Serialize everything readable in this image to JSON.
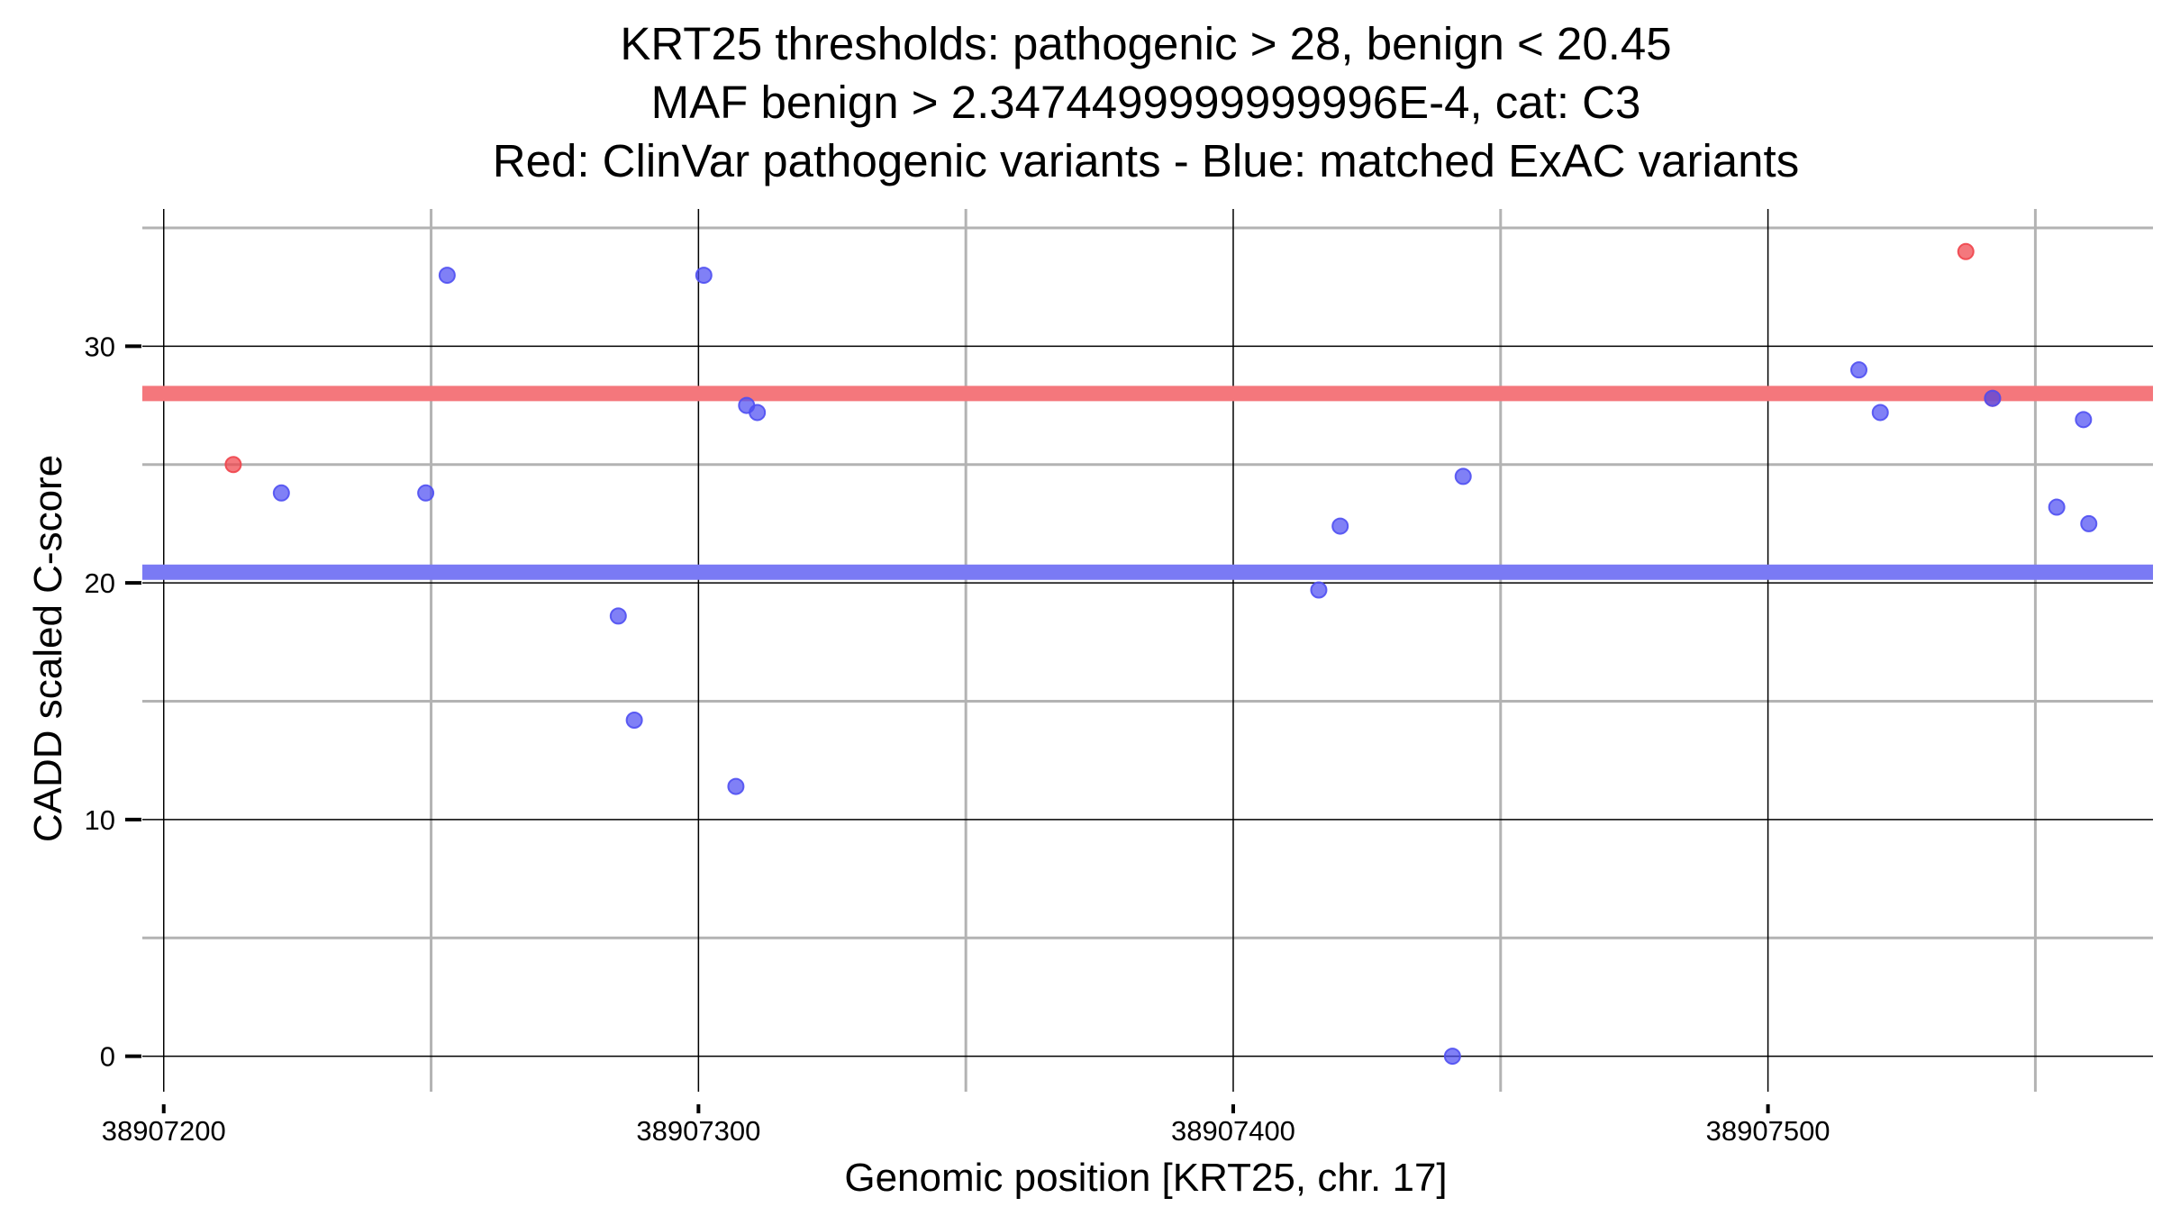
{
  "chart_data": {
    "type": "scatter",
    "title_lines": [
      "KRT25 thresholds: pathogenic > 28, benign < 20.45",
      "MAF benign > 2.3474499999999996E-4, cat: C3",
      "Red: ClinVar pathogenic variants - Blue: matched ExAC variants"
    ],
    "xlabel": "Genomic position [KRT25, chr. 17]",
    "ylabel": "CADD scaled C-score",
    "xlim": [
      38907196,
      38907572
    ],
    "ylim": [
      -1.5,
      35.8
    ],
    "x_ticks": [
      38907200,
      38907300,
      38907400,
      38907500
    ],
    "x_tick_labels": [
      "38907200",
      "38907300",
      "38907400",
      "38907500"
    ],
    "x_minor_grid": [
      38907250,
      38907350,
      38907450,
      38907550
    ],
    "y_ticks": [
      0,
      10,
      20,
      30
    ],
    "y_tick_labels": [
      "0",
      "10",
      "20",
      "30"
    ],
    "y_minor_grid": [
      5,
      15,
      25,
      35
    ],
    "thresholds": [
      {
        "name": "pathogenic",
        "value": 28,
        "color": "#f4777c"
      },
      {
        "name": "benign",
        "value": 20.45,
        "color": "#7a7af4"
      }
    ],
    "colors": {
      "pathogenic": "#f0444b",
      "benign": "#4f4ff2",
      "major_grid": "#000000",
      "minor_grid": "#b3b3b3"
    },
    "series": [
      {
        "name": "ClinVar pathogenic variants",
        "color_key": "pathogenic",
        "points": [
          {
            "x": 38907213,
            "y": 25.0
          },
          {
            "x": 38907537,
            "y": 34.0
          },
          {
            "x": 38907542,
            "y": 27.8
          }
        ]
      },
      {
        "name": "matched ExAC variants",
        "color_key": "benign",
        "points": [
          {
            "x": 38907222,
            "y": 23.8
          },
          {
            "x": 38907249,
            "y": 23.8
          },
          {
            "x": 38907253,
            "y": 33.0
          },
          {
            "x": 38907285,
            "y": 18.6
          },
          {
            "x": 38907288,
            "y": 14.2
          },
          {
            "x": 38907301,
            "y": 33.0
          },
          {
            "x": 38907307,
            "y": 11.4
          },
          {
            "x": 38907309,
            "y": 27.5
          },
          {
            "x": 38907311,
            "y": 27.2
          },
          {
            "x": 38907416,
            "y": 19.7
          },
          {
            "x": 38907420,
            "y": 22.4
          },
          {
            "x": 38907441,
            "y": 0.0
          },
          {
            "x": 38907443,
            "y": 24.5
          },
          {
            "x": 38907517,
            "y": 29.0
          },
          {
            "x": 38907521,
            "y": 27.2
          },
          {
            "x": 38907542,
            "y": 27.8
          },
          {
            "x": 38907554,
            "y": 23.2
          },
          {
            "x": 38907559,
            "y": 26.9
          },
          {
            "x": 38907560,
            "y": 22.5
          }
        ]
      }
    ]
  }
}
